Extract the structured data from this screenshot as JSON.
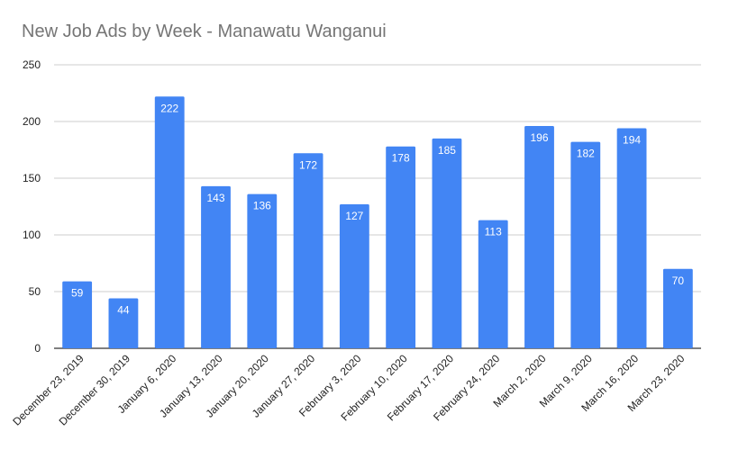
{
  "chart_data": {
    "type": "bar",
    "title": "New Job Ads by Week - Manawatu Wanganui",
    "xlabel": "",
    "ylabel": "",
    "categories": [
      "December 23, 2019",
      "December 30, 2019",
      "January 6, 2020",
      "January 13, 2020",
      "January 20, 2020",
      "January 27, 2020",
      "February 3, 2020",
      "February 10, 2020",
      "February 17, 2020",
      "February 24, 2020",
      "March 2, 2020",
      "March 9, 2020",
      "March 16, 2020",
      "March 23, 2020"
    ],
    "values": [
      59,
      44,
      222,
      143,
      136,
      172,
      127,
      178,
      185,
      113,
      196,
      182,
      194,
      70
    ],
    "ylim": [
      0,
      250
    ],
    "yticks": [
      0,
      50,
      100,
      150,
      200,
      250
    ],
    "grid": true,
    "legend": "none",
    "data_labels": true,
    "bar_color": "#4285f4",
    "label_color": "#ffffff",
    "title_color": "#757575",
    "tick_label_color": "#222222",
    "grid_color": "#cccccc",
    "axis_color": "#333333"
  }
}
